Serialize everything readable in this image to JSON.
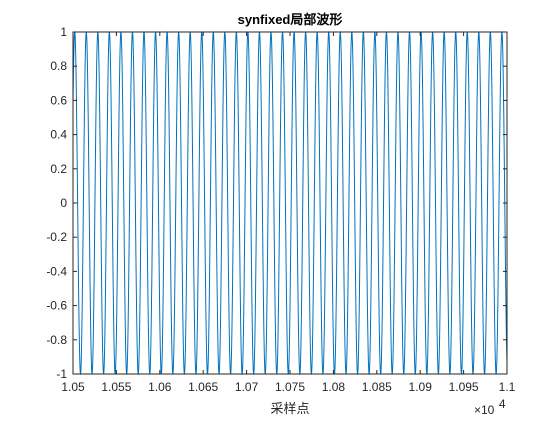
{
  "chart_data": {
    "type": "line",
    "title": "synfixed局部波形",
    "xlabel": "采样点",
    "ylabel": "",
    "x_multiplier_label": "×10",
    "x_multiplier_exponent": "4",
    "xlim": [
      10500,
      11000
    ],
    "ylim": [
      -1,
      1
    ],
    "xticks": [
      10500,
      10550,
      10600,
      10650,
      10700,
      10750,
      10800,
      10850,
      10900,
      10950,
      11000
    ],
    "xtick_labels": [
      "1.05",
      "1.055",
      "1.06",
      "1.065",
      "1.07",
      "1.075",
      "1.08",
      "1.085",
      "1.09",
      "1.095",
      "1.1"
    ],
    "yticks": [
      1,
      0.8,
      0.6,
      0.4,
      0.2,
      0,
      -0.2,
      -0.4,
      -0.6,
      -0.8,
      -1
    ],
    "ytick_labels": [
      "1",
      "0.8",
      "0.6",
      "0.4",
      "0.2",
      "0",
      "-0.2",
      "-0.4",
      "-0.6",
      "-0.8",
      "-1"
    ],
    "grid": false,
    "box": true,
    "series": [
      {
        "color": "#0072BD",
        "waveform": "sine",
        "amplitude": 1,
        "period_samples": 13.3,
        "first_peak_x": 10502,
        "x_start": 10500,
        "x_end": 11000
      }
    ]
  }
}
